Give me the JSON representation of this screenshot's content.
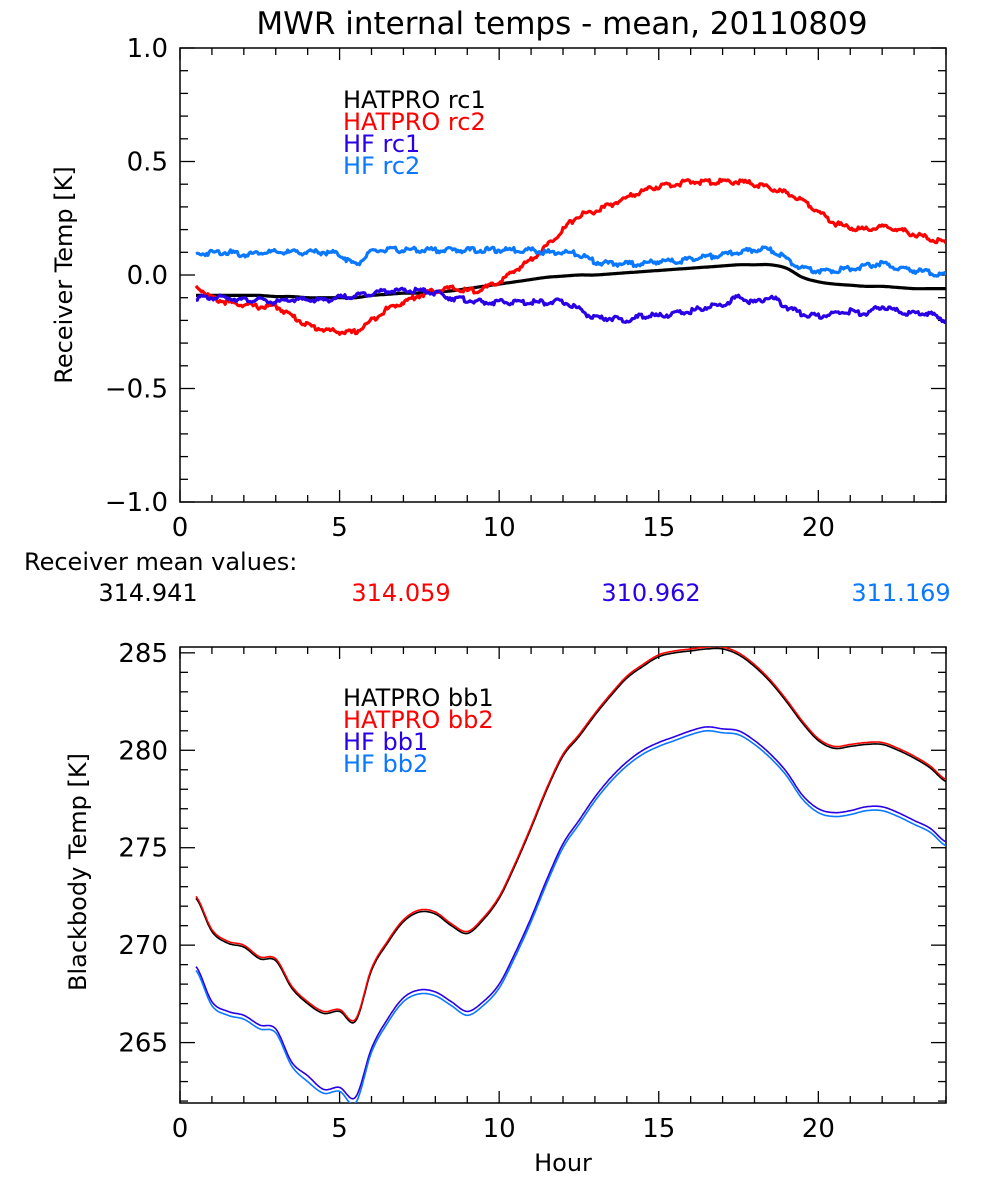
{
  "colors": {
    "black": "#000000",
    "red": "#ff0000",
    "violet": "#2a00e6",
    "lightblue": "#0a78ff"
  },
  "receiver_mean": {
    "label": "Receiver mean values:",
    "values": [
      "314.941",
      "314.059",
      "310.962",
      "311.169"
    ]
  },
  "chart_data": [
    {
      "type": "line",
      "title": "MWR internal temps - mean, 20110809",
      "xlabel": "",
      "ylabel": "Receiver Temp [K]",
      "xlim": [
        0,
        24
      ],
      "ylim": [
        -1.0,
        1.0
      ],
      "xticks": [
        "0",
        "5",
        "10",
        "15",
        "20"
      ],
      "xtick_values": [
        0,
        5,
        10,
        15,
        20
      ],
      "yticks": [
        "1.0",
        "0.5",
        "0.0",
        "-0.5",
        "-1.0"
      ],
      "ytick_values": [
        1.0,
        0.5,
        0.0,
        -0.5,
        -1.0
      ],
      "grid": false,
      "legend_position": "top-left-inside",
      "x": [
        0.5,
        1,
        1.5,
        2,
        2.5,
        3,
        3.5,
        4,
        4.5,
        5,
        5.5,
        6,
        6.5,
        7,
        7.5,
        8,
        8.5,
        9,
        9.5,
        10,
        10.5,
        11,
        11.5,
        12,
        12.5,
        13,
        13.5,
        14,
        14.5,
        15,
        15.5,
        16,
        16.5,
        17,
        17.5,
        18,
        18.5,
        19,
        19.5,
        20,
        20.5,
        21,
        21.5,
        22,
        22.5,
        23,
        23.5,
        24
      ],
      "series": [
        {
          "name": "HATPRO rc1",
          "color": "#000000",
          "values": [
            -0.09,
            -0.09,
            -0.09,
            -0.09,
            -0.09,
            -0.095,
            -0.095,
            -0.1,
            -0.1,
            -0.1,
            -0.1,
            -0.09,
            -0.085,
            -0.08,
            -0.08,
            -0.075,
            -0.07,
            -0.06,
            -0.05,
            -0.04,
            -0.03,
            -0.02,
            -0.01,
            -0.005,
            0.0,
            0.0,
            0.005,
            0.01,
            0.015,
            0.02,
            0.025,
            0.03,
            0.035,
            0.04,
            0.045,
            0.045,
            0.045,
            0.03,
            -0.01,
            -0.03,
            -0.04,
            -0.045,
            -0.05,
            -0.05,
            -0.055,
            -0.06,
            -0.06,
            -0.06
          ]
        },
        {
          "name": "HATPRO rc2",
          "color": "#ff0000",
          "values": [
            -0.05,
            -0.1,
            -0.12,
            -0.13,
            -0.14,
            -0.14,
            -0.18,
            -0.22,
            -0.24,
            -0.25,
            -0.25,
            -0.2,
            -0.15,
            -0.12,
            -0.09,
            -0.07,
            -0.06,
            -0.07,
            -0.06,
            -0.03,
            0.02,
            0.07,
            0.13,
            0.2,
            0.26,
            0.28,
            0.31,
            0.34,
            0.37,
            0.39,
            0.4,
            0.41,
            0.41,
            0.41,
            0.41,
            0.4,
            0.38,
            0.36,
            0.33,
            0.28,
            0.23,
            0.21,
            0.2,
            0.21,
            0.2,
            0.18,
            0.16,
            0.14
          ]
        },
        {
          "name": "HF rc1",
          "color": "#2a00e6",
          "values": [
            -0.1,
            -0.1,
            -0.1,
            -0.11,
            -0.11,
            -0.12,
            -0.11,
            -0.11,
            -0.11,
            -0.1,
            -0.09,
            -0.08,
            -0.07,
            -0.07,
            -0.07,
            -0.08,
            -0.1,
            -0.11,
            -0.12,
            -0.12,
            -0.12,
            -0.12,
            -0.12,
            -0.12,
            -0.15,
            -0.19,
            -0.19,
            -0.2,
            -0.18,
            -0.18,
            -0.17,
            -0.16,
            -0.14,
            -0.13,
            -0.1,
            -0.12,
            -0.1,
            -0.14,
            -0.17,
            -0.18,
            -0.17,
            -0.16,
            -0.17,
            -0.14,
            -0.16,
            -0.17,
            -0.17,
            -0.2
          ]
        },
        {
          "name": "HF rc2",
          "color": "#0a78ff",
          "values": [
            0.09,
            0.1,
            0.1,
            0.09,
            0.1,
            0.1,
            0.1,
            0.1,
            0.1,
            0.09,
            0.05,
            0.1,
            0.11,
            0.11,
            0.11,
            0.11,
            0.11,
            0.11,
            0.11,
            0.11,
            0.11,
            0.11,
            0.1,
            0.1,
            0.09,
            0.06,
            0.05,
            0.05,
            0.05,
            0.06,
            0.06,
            0.07,
            0.08,
            0.09,
            0.1,
            0.11,
            0.11,
            0.07,
            0.03,
            0.02,
            0.02,
            0.03,
            0.04,
            0.05,
            0.03,
            0.02,
            0.01,
            0.0
          ]
        }
      ]
    },
    {
      "type": "line",
      "title": "",
      "xlabel": "Hour",
      "ylabel": "Blackbody Temp [K]",
      "xlim": [
        0,
        24
      ],
      "ylim": [
        261.9,
        285.3
      ],
      "xticks": [
        "0",
        "5",
        "10",
        "15",
        "20"
      ],
      "xtick_values": [
        0,
        5,
        10,
        15,
        20
      ],
      "yticks": [
        "285",
        "280",
        "275",
        "270",
        "265"
      ],
      "ytick_values": [
        285,
        280,
        275,
        270,
        265
      ],
      "grid": false,
      "legend_position": "top-left-inside",
      "x": [
        0.5,
        1,
        1.5,
        2,
        2.5,
        3,
        3.5,
        4,
        4.5,
        5,
        5.5,
        6,
        6.5,
        7,
        7.5,
        8,
        8.5,
        9,
        9.5,
        10,
        10.5,
        11,
        11.5,
        12,
        12.5,
        13,
        13.5,
        14,
        14.5,
        15,
        15.5,
        16,
        16.5,
        17,
        17.5,
        18,
        18.5,
        19,
        19.5,
        20,
        20.5,
        21,
        21.5,
        22,
        22.5,
        23,
        23.5,
        24
      ],
      "series": [
        {
          "name": "HATPRO bb1",
          "color": "#000000",
          "values": [
            272.4,
            270.7,
            270.1,
            269.9,
            269.3,
            269.2,
            267.8,
            267.0,
            266.5,
            266.6,
            266.1,
            268.7,
            270.1,
            271.2,
            271.7,
            271.6,
            271.0,
            270.6,
            271.3,
            272.4,
            274.1,
            276.0,
            278.0,
            279.7,
            280.7,
            281.8,
            282.8,
            283.7,
            284.3,
            284.8,
            285.0,
            285.1,
            285.2,
            285.2,
            284.9,
            284.3,
            283.5,
            282.5,
            281.4,
            280.5,
            280.1,
            280.2,
            280.3,
            280.3,
            280.0,
            279.6,
            279.1,
            278.4
          ]
        },
        {
          "name": "HATPRO bb2",
          "color": "#ff0000",
          "values": [
            272.5,
            270.8,
            270.2,
            270.0,
            269.4,
            269.3,
            267.9,
            267.1,
            266.6,
            266.7,
            266.2,
            268.8,
            270.2,
            271.3,
            271.8,
            271.7,
            271.1,
            270.7,
            271.4,
            272.5,
            274.2,
            276.1,
            278.1,
            279.8,
            280.8,
            281.9,
            282.9,
            283.8,
            284.4,
            284.9,
            285.1,
            285.2,
            285.3,
            285.3,
            285.0,
            284.4,
            283.6,
            282.6,
            281.5,
            280.6,
            280.2,
            280.3,
            280.4,
            280.4,
            280.1,
            279.7,
            279.2,
            278.5
          ]
        },
        {
          "name": "HF bb1",
          "color": "#2a00e6",
          "values": [
            268.9,
            267.1,
            266.6,
            266.4,
            265.9,
            265.7,
            264.0,
            263.3,
            262.6,
            262.7,
            262.2,
            264.7,
            266.2,
            267.3,
            267.7,
            267.6,
            267.1,
            266.6,
            267.1,
            268.0,
            269.6,
            271.4,
            273.4,
            275.2,
            276.4,
            277.6,
            278.6,
            279.4,
            280.0,
            280.4,
            280.7,
            281.0,
            281.2,
            281.1,
            281.0,
            280.5,
            279.8,
            278.9,
            277.7,
            277.0,
            276.8,
            276.9,
            277.1,
            277.1,
            276.8,
            276.4,
            276.0,
            275.3
          ]
        },
        {
          "name": "HF bb2",
          "color": "#0a78ff",
          "values": [
            268.7,
            266.9,
            266.4,
            266.2,
            265.7,
            265.5,
            263.8,
            263.0,
            262.4,
            262.5,
            261.9,
            264.5,
            266.0,
            267.1,
            267.5,
            267.4,
            266.9,
            266.4,
            266.9,
            267.8,
            269.4,
            271.2,
            273.2,
            275.0,
            276.2,
            277.4,
            278.4,
            279.2,
            279.8,
            280.2,
            280.5,
            280.8,
            281.0,
            280.9,
            280.8,
            280.3,
            279.6,
            278.7,
            277.5,
            276.8,
            276.6,
            276.7,
            276.9,
            276.9,
            276.6,
            276.2,
            275.8,
            275.1
          ]
        }
      ]
    }
  ]
}
